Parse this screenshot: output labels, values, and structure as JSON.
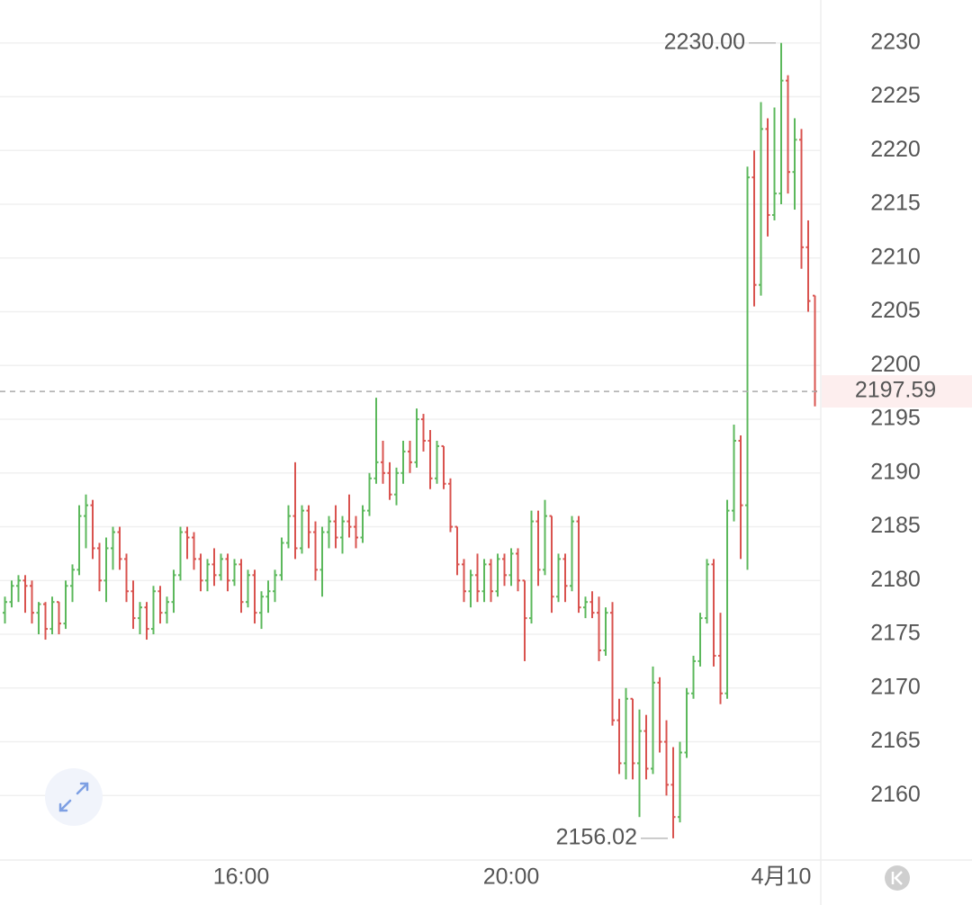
{
  "chart_data": {
    "type": "ohlc",
    "categories": [
      null,
      null,
      null,
      null,
      null,
      null,
      null,
      null,
      null,
      null,
      null,
      null,
      null,
      null,
      null,
      null,
      null,
      null,
      null,
      null,
      null,
      null,
      null,
      null,
      null,
      null,
      null,
      null,
      null,
      null,
      null,
      null,
      null,
      null,
      null,
      "16:00",
      null,
      null,
      null,
      null,
      null,
      null,
      null,
      null,
      null,
      null,
      null,
      null,
      null,
      null,
      null,
      null,
      null,
      null,
      null,
      null,
      null,
      null,
      null,
      null,
      null,
      null,
      null,
      null,
      null,
      null,
      null,
      null,
      null,
      null,
      null,
      null,
      null,
      null,
      null,
      "20:00",
      null,
      null,
      null,
      null,
      null,
      null,
      null,
      null,
      null,
      null,
      null,
      null,
      null,
      null,
      null,
      null,
      null,
      null,
      null,
      null,
      null,
      null,
      null,
      null,
      null,
      null,
      null,
      null,
      null,
      null,
      null,
      null,
      null,
      null,
      null,
      null,
      null,
      null,
      null,
      "4月10",
      null,
      null,
      null,
      null,
      null
    ],
    "ohlc": [
      [
        2177,
        2178.5,
        2176,
        2178
      ],
      [
        2178,
        2180,
        2177.5,
        2179.5
      ],
      [
        2179.5,
        2180.5,
        2178,
        2180
      ],
      [
        2180,
        2180.5,
        2177,
        2179.5
      ],
      [
        2179.5,
        2180,
        2176,
        2177
      ],
      [
        2177,
        2178,
        2175,
        2177.8
      ],
      [
        2177.8,
        2178,
        2174.5,
        2175.5
      ],
      [
        2175.5,
        2178.5,
        2175,
        2178
      ],
      [
        2178,
        2178,
        2175,
        2176
      ],
      [
        2176,
        2180,
        2175.5,
        2179.5
      ],
      [
        2179.5,
        2181.5,
        2178,
        2181
      ],
      [
        2181,
        2187,
        2180.5,
        2186
      ],
      [
        2186,
        2188,
        2183,
        2187
      ],
      [
        2187,
        2187.5,
        2182,
        2183
      ],
      [
        2183,
        2183.5,
        2179,
        2180
      ],
      [
        2180,
        2184,
        2178,
        2183
      ],
      [
        2183,
        2185,
        2181,
        2184.5
      ],
      [
        2184.5,
        2185,
        2181,
        2182
      ],
      [
        2182,
        2182.5,
        2178,
        2179
      ],
      [
        2179,
        2180,
        2175.5,
        2176.5
      ],
      [
        2176.5,
        2178,
        2175,
        2177.5
      ],
      [
        2177.5,
        2178,
        2174.5,
        2175.5
      ],
      [
        2175.5,
        2179.5,
        2175,
        2179
      ],
      [
        2179,
        2179.5,
        2176,
        2177
      ],
      [
        2177,
        2178.5,
        2176,
        2178
      ],
      [
        2178,
        2181,
        2177,
        2180.5
      ],
      [
        2180.5,
        2185,
        2180,
        2184.5
      ],
      [
        2184.5,
        2185,
        2182,
        2184
      ],
      [
        2184,
        2184.5,
        2181,
        2182
      ],
      [
        2182,
        2182.5,
        2179,
        2180
      ],
      [
        2180,
        2182,
        2179,
        2181.5
      ],
      [
        2181.5,
        2183,
        2179.5,
        2180.5
      ],
      [
        2180.5,
        2182.5,
        2180,
        2182
      ],
      [
        2182,
        2182.5,
        2179,
        2180
      ],
      [
        2180,
        2182,
        2179.5,
        2181.5
      ],
      [
        2181.5,
        2182,
        2177,
        2178
      ],
      [
        2178,
        2181,
        2177.5,
        2180.5
      ],
      [
        2180.5,
        2181,
        2176,
        2177
      ],
      [
        2177,
        2179,
        2175.5,
        2178.5
      ],
      [
        2178.5,
        2180,
        2177,
        2179
      ],
      [
        2179,
        2181,
        2178,
        2180.5
      ],
      [
        2180.5,
        2184,
        2180,
        2183.5
      ],
      [
        2183.5,
        2187,
        2183,
        2186
      ],
      [
        2186,
        2191,
        2182,
        2183
      ],
      [
        2183,
        2187,
        2182.5,
        2186.5
      ],
      [
        2186.5,
        2187,
        2183,
        2184.5
      ],
      [
        2184.5,
        2185.5,
        2180,
        2181
      ],
      [
        2181,
        2185,
        2178.5,
        2184.5
      ],
      [
        2184.5,
        2186,
        2183,
        2185.5
      ],
      [
        2185.5,
        2187,
        2183,
        2184
      ],
      [
        2184,
        2186,
        2182.5,
        2185.5
      ],
      [
        2185.5,
        2188,
        2184,
        2185
      ],
      [
        2185,
        2186,
        2183,
        2184
      ],
      [
        2184,
        2187,
        2183.5,
        2186.5
      ],
      [
        2186.5,
        2190,
        2186,
        2189.5
      ],
      [
        2189.5,
        2197,
        2189,
        2191
      ],
      [
        2191,
        2193,
        2189,
        2190
      ],
      [
        2190,
        2191,
        2187.5,
        2188
      ],
      [
        2188,
        2190.5,
        2187,
        2190
      ],
      [
        2190,
        2193,
        2189,
        2192
      ],
      [
        2192,
        2193,
        2190,
        2191
      ],
      [
        2191,
        2196,
        2190.5,
        2195
      ],
      [
        2195,
        2195.5,
        2192,
        2193
      ],
      [
        2193,
        2194,
        2188.5,
        2189.5
      ],
      [
        2189.5,
        2193,
        2189,
        2192.5
      ],
      [
        2192.5,
        2192.5,
        2188.5,
        2189
      ],
      [
        2189,
        2189.5,
        2184.5,
        2185
      ],
      [
        2185,
        2185,
        2180.5,
        2181.5
      ],
      [
        2181.5,
        2182,
        2178,
        2179
      ],
      [
        2179,
        2181,
        2177.5,
        2180.5
      ],
      [
        2180.5,
        2182.5,
        2178,
        2179
      ],
      [
        2179,
        2182,
        2178,
        2181.5
      ],
      [
        2181.5,
        2182,
        2178,
        2179
      ],
      [
        2179,
        2182.5,
        2178.5,
        2182
      ],
      [
        2182,
        2182.5,
        2179.5,
        2180.5
      ],
      [
        2180.5,
        2183,
        2179.5,
        2182.5
      ],
      [
        2182.5,
        2183,
        2179,
        2180
      ],
      [
        2180,
        2180,
        2172.5,
        2176.5
      ],
      [
        2176.5,
        2186.5,
        2176,
        2185.5
      ],
      [
        2185.5,
        2186.5,
        2179.5,
        2181
      ],
      [
        2181,
        2187.5,
        2180.5,
        2186
      ],
      [
        2186,
        2186,
        2177,
        2178.5
      ],
      [
        2178.5,
        2182.5,
        2178,
        2182
      ],
      [
        2182,
        2182.5,
        2178,
        2179.5
      ],
      [
        2179.5,
        2186,
        2179,
        2185.5
      ],
      [
        2185.5,
        2186,
        2177,
        2177.5
      ],
      [
        2177.5,
        2178.5,
        2176.5,
        2178
      ],
      [
        2178,
        2179,
        2176.5,
        2177
      ],
      [
        2177,
        2178.5,
        2172.5,
        2173.5
      ],
      [
        2173.5,
        2177.5,
        2173,
        2177
      ],
      [
        2177,
        2178,
        2166.5,
        2167
      ],
      [
        2167,
        2169,
        2162,
        2163
      ],
      [
        2163,
        2170,
        2161.5,
        2169
      ],
      [
        2169,
        2169,
        2161.5,
        2163
      ],
      [
        2163,
        2168,
        2158,
        2166
      ],
      [
        2166,
        2167.5,
        2161.5,
        2162.5
      ],
      [
        2162.5,
        2172,
        2162,
        2170.5
      ],
      [
        2170.5,
        2171,
        2164,
        2165
      ],
      [
        2165,
        2167,
        2160,
        2161
      ],
      [
        2161,
        2164.5,
        2156.02,
        2158
      ],
      [
        2158,
        2165,
        2157.5,
        2164
      ],
      [
        2164,
        2170,
        2163.5,
        2169.5
      ],
      [
        2169.5,
        2173,
        2169,
        2172.5
      ],
      [
        2172.5,
        2177,
        2172,
        2176.5
      ],
      [
        2176.5,
        2182,
        2176,
        2181.5
      ],
      [
        2181.5,
        2182,
        2172,
        2173
      ],
      [
        2173,
        2177,
        2168.5,
        2169.5
      ],
      [
        2169.5,
        2187.5,
        2169,
        2186.5
      ],
      [
        2186.5,
        2194.5,
        2185.5,
        2193
      ],
      [
        2193,
        2193.5,
        2182,
        2187
      ],
      [
        2187,
        2218.5,
        2181,
        2217.5
      ],
      [
        2217.5,
        2220,
        2205.5,
        2207.5
      ],
      [
        2207.5,
        2224.5,
        2206.5,
        2222
      ],
      [
        2222,
        2223,
        2212,
        2214
      ],
      [
        2214,
        2224,
        2213.5,
        2216
      ],
      [
        2216,
        2230,
        2215,
        2226.5
      ],
      [
        2226.5,
        2227,
        2216,
        2218
      ],
      [
        2218,
        2223,
        2214.5,
        2221
      ],
      [
        2221,
        2222,
        2209,
        2211
      ],
      [
        2211,
        2213.5,
        2205,
        2206
      ],
      [
        2206.5,
        2206.5,
        2196.2,
        2197.59
      ]
    ],
    "up_color": "#5cb85c",
    "down_color": "#d9534f",
    "ylim": [
      2154,
      2234
    ],
    "yticks": [
      2160,
      2165,
      2170,
      2175,
      2180,
      2185,
      2190,
      2195,
      2200,
      2205,
      2210,
      2215,
      2220,
      2225,
      2230
    ],
    "grid": true,
    "high_label": {
      "value": 2230,
      "label": "2230.00"
    },
    "low_label": {
      "value": 2156.02,
      "label": "2156.02"
    },
    "last_price": {
      "value": 2197.59,
      "label": "2197.59"
    }
  }
}
